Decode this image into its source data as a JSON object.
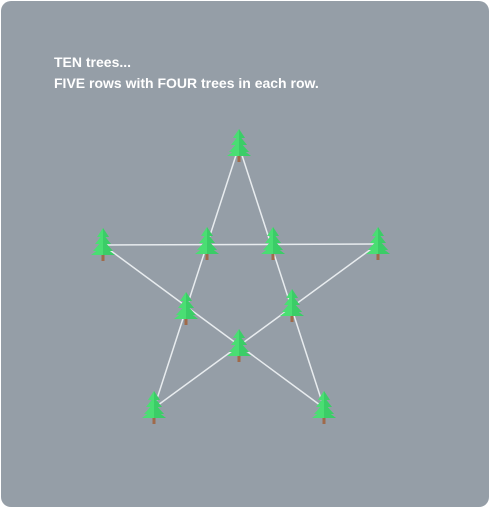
{
  "puzzle": {
    "title_line": "TEN trees...",
    "subtitle_line": "FIVE rows with FOUR trees in each row."
  },
  "colors": {
    "background": "#959ea7",
    "line": "#e8ecef",
    "tree_light": "#4ade73",
    "tree_dark": "#2fbf5c",
    "trunk": "#a06a4a",
    "text": "#ffffff"
  },
  "trees": {
    "count": 10,
    "rows": 5,
    "trees_per_row": 4,
    "icon": "pine-tree-icon"
  }
}
